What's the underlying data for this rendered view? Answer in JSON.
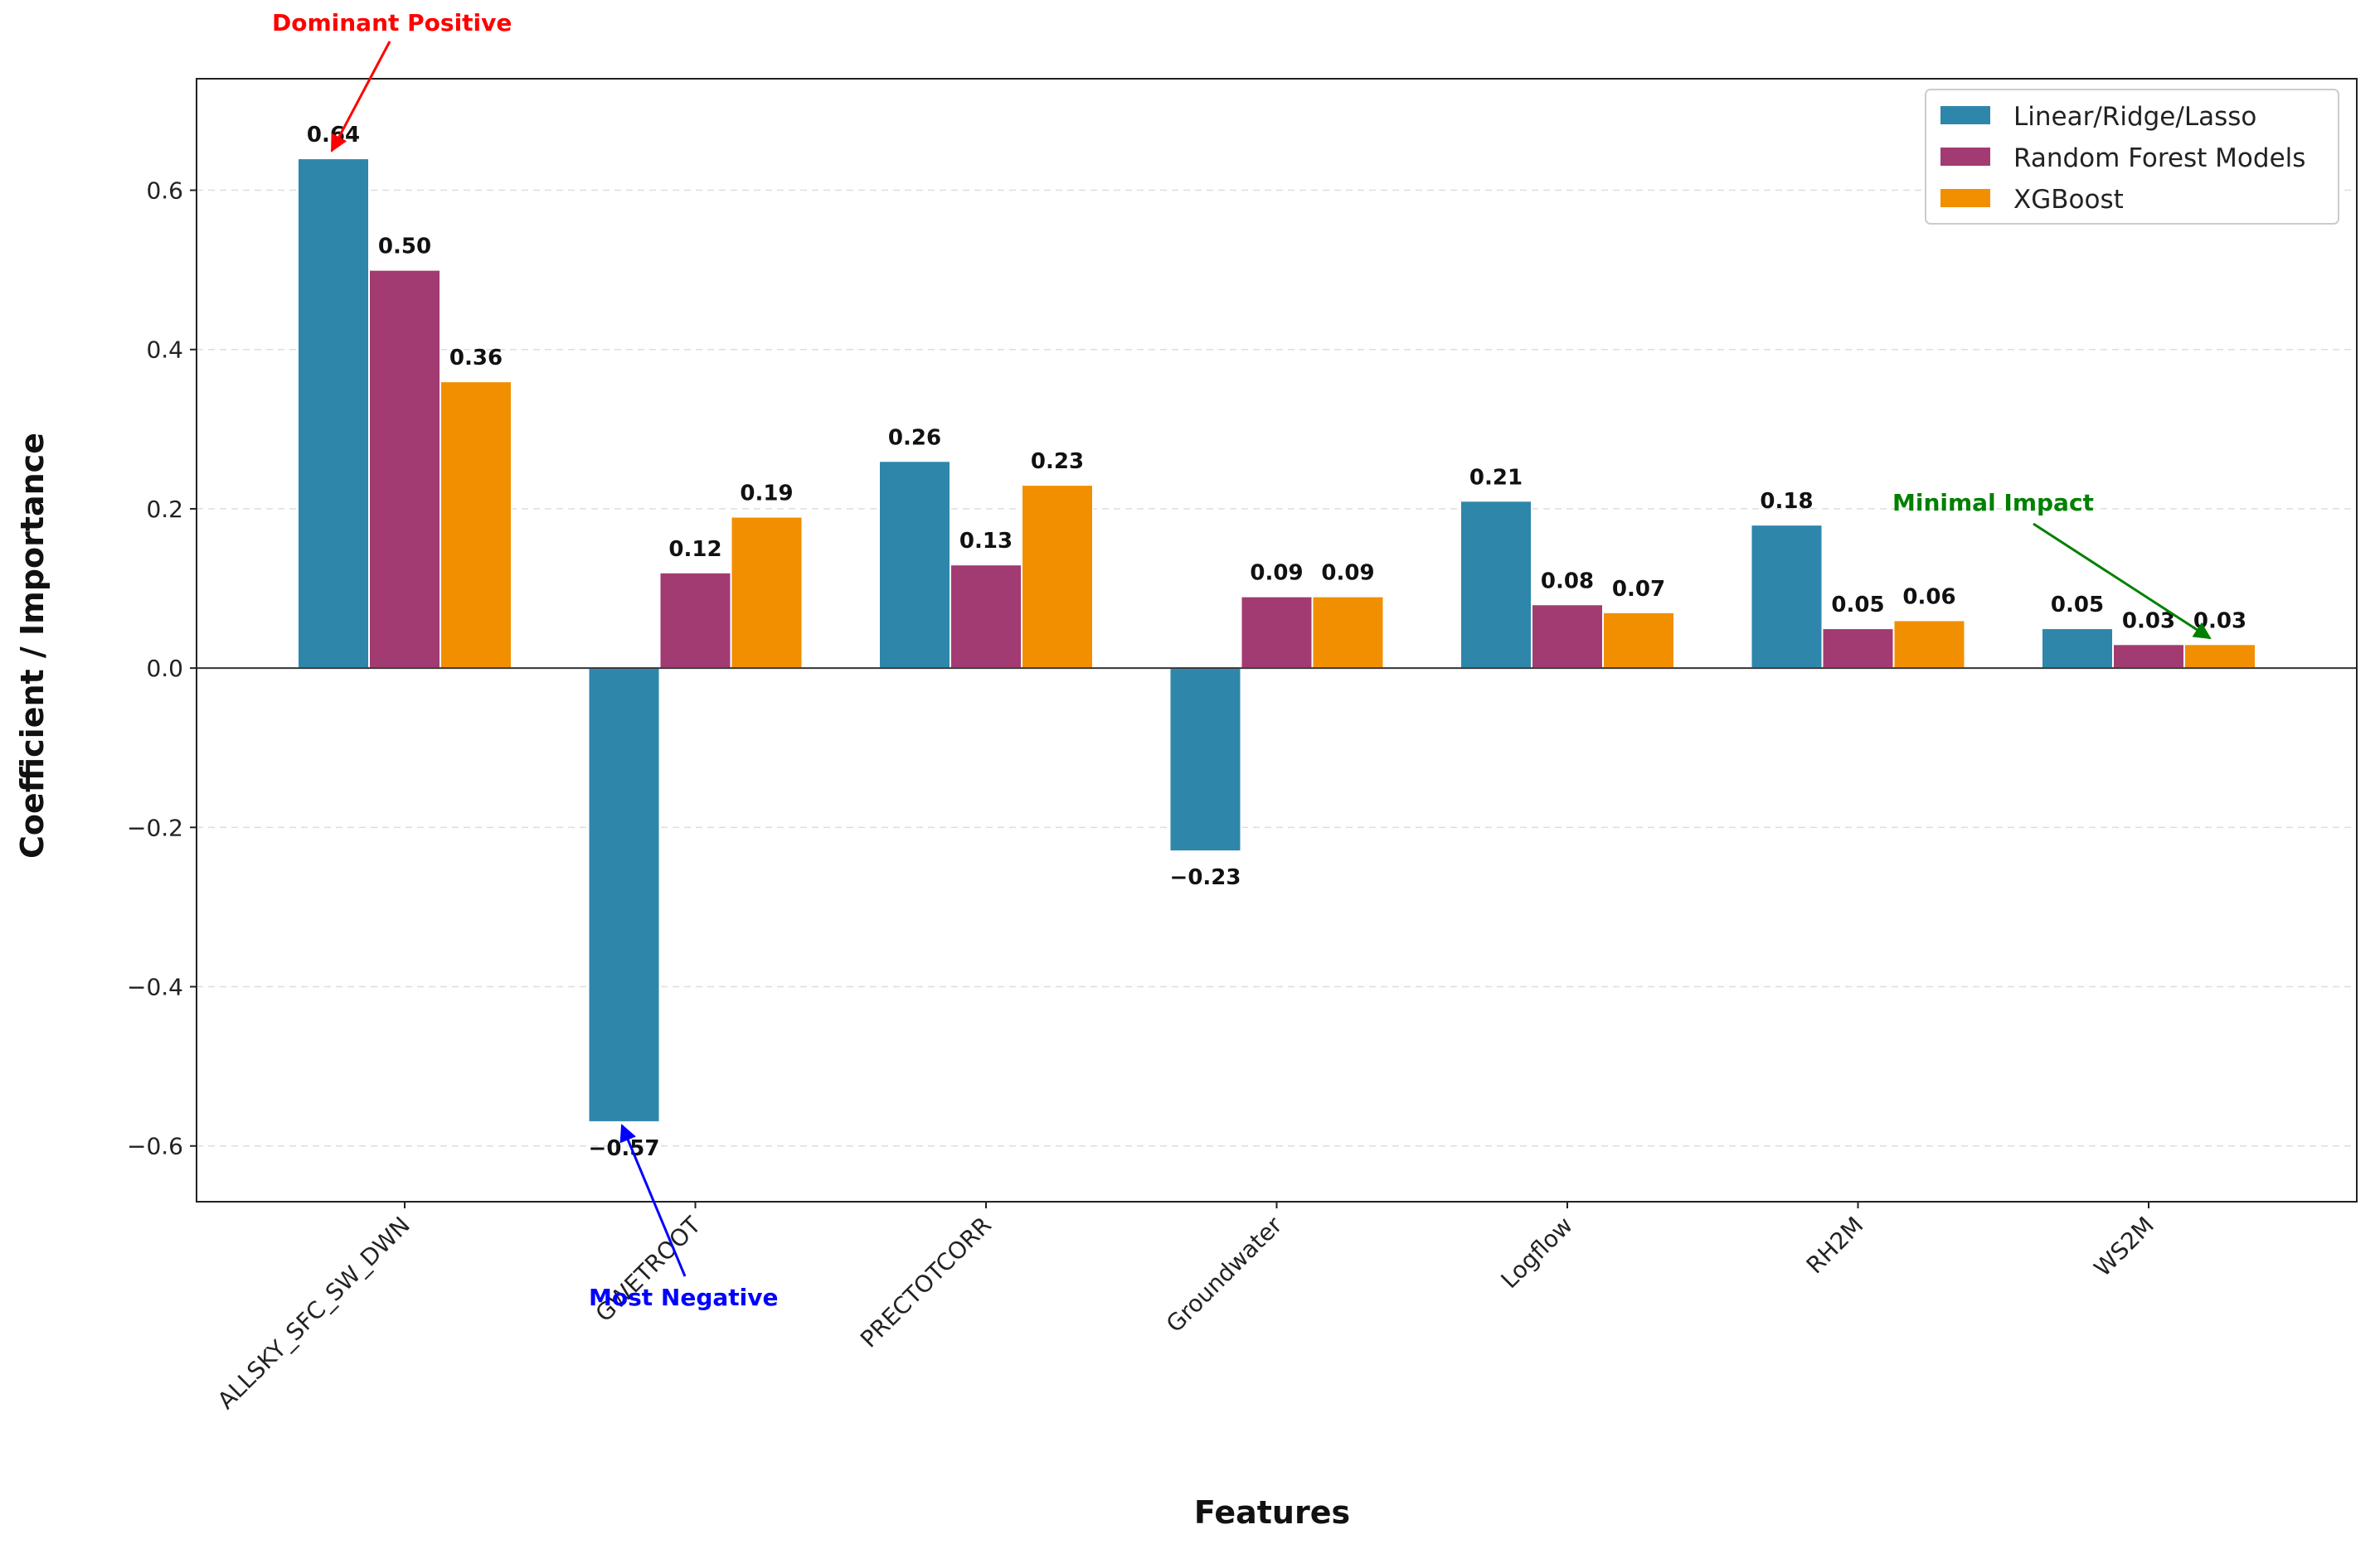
{
  "chart_data": {
    "type": "bar",
    "title": "",
    "xlabel": "Features",
    "ylabel": "Coefficient / Importance",
    "categories": [
      "ALLSKY_SFC_SW_DWN",
      "GWETROOT",
      "PRECTOTCORR",
      "Groundwater",
      "Logflow",
      "RH2M",
      "WS2M"
    ],
    "series": [
      {
        "name": "Linear/Ridge/Lasso",
        "color": "#2e86ab",
        "values": [
          0.64,
          -0.57,
          0.26,
          -0.23,
          0.21,
          0.18,
          0.05
        ],
        "labels": [
          "0.64",
          "−0.57",
          "0.26",
          "−0.23",
          "0.21",
          "0.18",
          "0.05"
        ]
      },
      {
        "name": "Random Forest Models",
        "color": "#a23b72",
        "values": [
          0.5,
          0.12,
          0.13,
          0.09,
          0.08,
          0.05,
          0.03
        ],
        "labels": [
          "0.50",
          "0.12",
          "0.13",
          "0.09",
          "0.08",
          "0.05",
          "0.03"
        ]
      },
      {
        "name": "XGBoost",
        "color": "#f18f01",
        "values": [
          0.36,
          0.19,
          0.23,
          0.09,
          0.07,
          0.06,
          0.03
        ],
        "labels": [
          "0.36",
          "0.19",
          "0.23",
          "0.09",
          "0.07",
          "0.06",
          "0.03"
        ]
      }
    ],
    "ylim": [
      -0.67,
      0.74
    ],
    "yticks": [
      -0.6,
      -0.4,
      -0.2,
      0.0,
      0.2,
      0.4,
      0.6
    ],
    "ytick_labels": [
      "−0.6",
      "−0.4",
      "−0.2",
      "0.0",
      "0.2",
      "0.4",
      "0.6"
    ],
    "grid": true,
    "legend_position": "top-right",
    "annotations": [
      {
        "text": "Dominant Positive",
        "color": "#ff0000",
        "category": 0,
        "series": 0,
        "target_value": 0.64
      },
      {
        "text": "Most Negative",
        "color": "#0000ff",
        "category": 1,
        "series": 0,
        "target_value": -0.57
      },
      {
        "text": "Minimal Impact",
        "color": "#008000",
        "category": 6,
        "series": 2,
        "target_value": 0.03
      }
    ]
  }
}
